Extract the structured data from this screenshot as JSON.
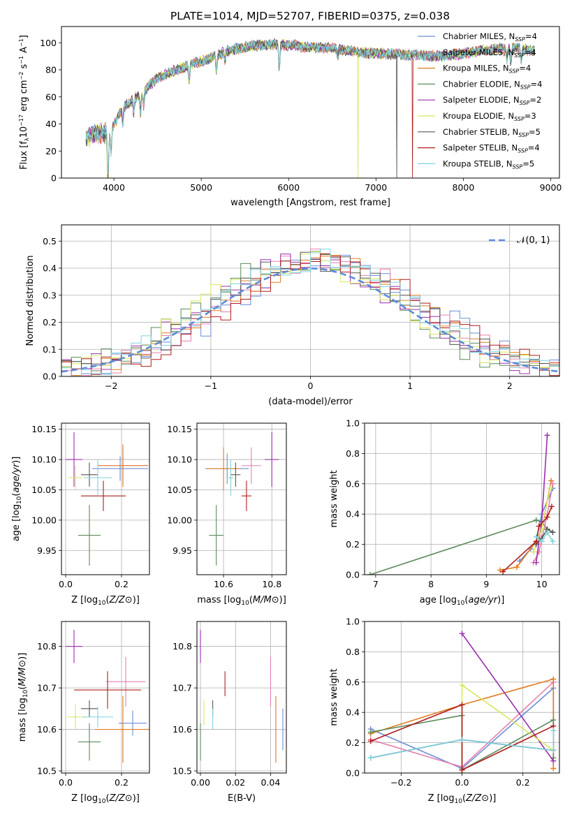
{
  "figure_title": "PLATE=1014, MJD=52707, FIBERID=0375, z=0.038",
  "colors": [
    "#6b8ed6",
    "#e67fb0",
    "#e07b1f",
    "#5b8b5b",
    "#9b2fae",
    "#d7e85a",
    "#555555",
    "#b01c1c",
    "#7fd3df"
  ],
  "chart_data": [
    {
      "id": "spectrum",
      "type": "line",
      "xlabel": "wavelength [Angstrom, rest frame]",
      "ylabel_parts": [
        "Flux [f",
        "λ",
        "10",
        "−17",
        " erg cm",
        "−2",
        " s",
        "−1",
        " A",
        "−1",
        "]"
      ],
      "xlim": [
        3400,
        9100
      ],
      "ylim": [
        0,
        112
      ],
      "xticks": [
        4000,
        5000,
        6000,
        7000,
        8000,
        9000
      ],
      "yticks": [
        0,
        20,
        40,
        60,
        80,
        100
      ],
      "grid": false,
      "legend_position": "top-right",
      "continuum": {
        "x": [
          3680,
          3850,
          3950,
          4100,
          4300,
          4500,
          4800,
          5000,
          5300,
          5600,
          5900,
          6200,
          6500,
          6800,
          7100,
          7400,
          7700,
          8000,
          8300,
          8600,
          8820
        ],
        "y": [
          30,
          34,
          33,
          52,
          62,
          74,
          82,
          86,
          94,
          98,
          99,
          97,
          96,
          93,
          92,
          91,
          90,
          92,
          95,
          96,
          94
        ]
      },
      "dips": [
        {
          "x": 3933,
          "depth": 34
        },
        {
          "x": 3968,
          "depth": 18
        },
        {
          "x": 4102,
          "depth": 12
        },
        {
          "x": 4227,
          "depth": 10
        },
        {
          "x": 4305,
          "depth": 14
        },
        {
          "x": 4340,
          "depth": 10
        },
        {
          "x": 4861,
          "depth": 12
        },
        {
          "x": 5175,
          "depth": 12
        },
        {
          "x": 5270,
          "depth": 6
        },
        {
          "x": 5893,
          "depth": 20
        },
        {
          "x": 6563,
          "depth": 6
        },
        {
          "x": 8500,
          "depth": 8
        },
        {
          "x": 8544,
          "depth": 10
        },
        {
          "x": 8664,
          "depth": 10
        }
      ],
      "drops": [
        {
          "x": 3925,
          "series": 5
        },
        {
          "x": 6795,
          "series": 5
        },
        {
          "x": 7240,
          "series": 6
        },
        {
          "x": 7420,
          "series": 7
        }
      ],
      "series": [
        {
          "label_main": "Chabrier MILES, N",
          "label_sub": "SSP",
          "label_tail": "=4",
          "color_index": 0
        },
        {
          "label_main": "Salpeter MILES, N",
          "label_sub": "SSP",
          "label_tail": "=4",
          "color_index": 1
        },
        {
          "label_main": "Kroupa MILES, N",
          "label_sub": "SSP",
          "label_tail": "=4",
          "color_index": 2
        },
        {
          "label_main": "Chabrier ELODIE, N",
          "label_sub": "SSP",
          "label_tail": "=4",
          "color_index": 3
        },
        {
          "label_main": "Salpeter ELODIE, N",
          "label_sub": "SSP",
          "label_tail": "=2",
          "color_index": 4
        },
        {
          "label_main": "Kroupa ELODIE, N",
          "label_sub": "SSP",
          "label_tail": "=3",
          "color_index": 5
        },
        {
          "label_main": "Chabrier STELIB, N",
          "label_sub": "SSP",
          "label_tail": "=5",
          "color_index": 6
        },
        {
          "label_main": "Salpeter STELIB, N",
          "label_sub": "SSP",
          "label_tail": "=4",
          "color_index": 7
        },
        {
          "label_main": "Kroupa STELIB, N",
          "label_sub": "SSP",
          "label_tail": "=5",
          "color_index": 8
        }
      ]
    },
    {
      "id": "residuals",
      "type": "line",
      "xlabel": "(data-model)/error",
      "ylabel": "Normed distribution",
      "xlim": [
        -2.5,
        2.5
      ],
      "ylim": [
        0,
        0.56
      ],
      "xticks": [
        -2,
        -1,
        0,
        1,
        2
      ],
      "yticks": [
        0.0,
        0.1,
        0.2,
        0.3,
        0.4,
        0.5
      ],
      "xtick_labels": [
        "−2",
        "−1",
        "0",
        "1",
        "2"
      ],
      "ytick_labels": [
        "0.0",
        "0.1",
        "0.2",
        "0.3",
        "0.4",
        "0.5"
      ],
      "grid": true,
      "legend_position": "top-right",
      "gaussian_label": "𝒩(0, 1)",
      "gaussian_color": "#5b8bd9",
      "bin_edges_start": -2.5,
      "bin_width": 0.1,
      "bin_count": 50,
      "series": [
        {
          "color_index": 0,
          "shift": 0.22,
          "seed": 3
        },
        {
          "color_index": 1,
          "shift": 0.12,
          "seed": 7
        },
        {
          "color_index": 2,
          "shift": 0.1,
          "seed": 11
        },
        {
          "color_index": 3,
          "shift": -0.12,
          "seed": 13
        },
        {
          "color_index": 4,
          "shift": -0.05,
          "seed": 17
        },
        {
          "color_index": 5,
          "shift": -0.08,
          "seed": 19
        },
        {
          "color_index": 6,
          "shift": 0.05,
          "seed": 23
        },
        {
          "color_index": 7,
          "shift": 0.18,
          "seed": 29
        },
        {
          "color_index": 8,
          "shift": 0.02,
          "seed": 31
        }
      ]
    },
    {
      "id": "age-vs-Z",
      "type": "scatter",
      "xlabel": "Z [log10(Z/Z⊙)]",
      "ylabel": "age  [log10(age/yr)]",
      "xlim": [
        -0.015,
        0.3
      ],
      "ylim": [
        9.91,
        10.16
      ],
      "xticks": [
        0.0,
        0.2
      ],
      "xtick_labels": [
        "0.0",
        "0.2"
      ],
      "yticks": [
        9.95,
        10.0,
        10.05,
        10.1,
        10.15
      ],
      "ytick_labels": [
        "9.95",
        "10.00",
        "10.05",
        "10.10",
        "10.15"
      ],
      "grid": true,
      "points": [
        {
          "c": 0,
          "x": 0.195,
          "y": 10.085,
          "xerr": 0.1,
          "yerr": 0.02
        },
        {
          "c": 1,
          "x": 0.205,
          "y": 10.09,
          "xerr": 0.09,
          "yerr": 0.03
        },
        {
          "c": 2,
          "x": 0.205,
          "y": 10.09,
          "xerr": 0.09,
          "yerr": 0.035
        },
        {
          "c": 3,
          "x": 0.085,
          "y": 9.975,
          "xerr": 0.04,
          "yerr": 0.05
        },
        {
          "c": 4,
          "x": 0.03,
          "y": 10.1,
          "xerr": 0.03,
          "yerr": 0.045
        },
        {
          "c": 5,
          "x": 0.035,
          "y": 10.07,
          "xerr": 0.025,
          "yerr": 0.02
        },
        {
          "c": 6,
          "x": 0.085,
          "y": 10.075,
          "xerr": 0.03,
          "yerr": 0.02
        },
        {
          "c": 7,
          "x": 0.135,
          "y": 10.04,
          "xerr": 0.08,
          "yerr": 0.025
        },
        {
          "c": 8,
          "x": 0.115,
          "y": 10.07,
          "xerr": 0.05,
          "yerr": 0.03
        }
      ]
    },
    {
      "id": "age-vs-mass",
      "type": "scatter",
      "xlabel": "mass [log10(M/M⊙)]",
      "ylabel": "",
      "xlim": [
        10.49,
        10.86
      ],
      "ylim": [
        9.91,
        10.16
      ],
      "xticks": [
        10.6,
        10.8
      ],
      "xtick_labels": [
        "10.6",
        "10.8"
      ],
      "yticks": [
        9.95,
        10.0,
        10.05,
        10.1,
        10.15
      ],
      "ytick_labels": [
        "9.95",
        "10.00",
        "10.05",
        "10.10",
        "10.15"
      ],
      "grid": true,
      "points": [
        {
          "c": 0,
          "x": 10.615,
          "y": 10.085,
          "xerr": 0.09,
          "yerr": 0.025
        },
        {
          "c": 1,
          "x": 10.715,
          "y": 10.09,
          "xerr": 0.04,
          "yerr": 0.03
        },
        {
          "c": 2,
          "x": 10.6,
          "y": 10.085,
          "xerr": 0.07,
          "yerr": 0.035
        },
        {
          "c": 3,
          "x": 10.57,
          "y": 9.975,
          "xerr": 0.03,
          "yerr": 0.05
        },
        {
          "c": 4,
          "x": 10.8,
          "y": 10.1,
          "xerr": 0.03,
          "yerr": 0.045
        },
        {
          "c": 5,
          "x": 10.63,
          "y": 10.07,
          "xerr": 0.01,
          "yerr": 0.02
        },
        {
          "c": 6,
          "x": 10.65,
          "y": 10.075,
          "xerr": 0.02,
          "yerr": 0.02
        },
        {
          "c": 7,
          "x": 10.695,
          "y": 10.04,
          "xerr": 0.02,
          "yerr": 0.025
        },
        {
          "c": 8,
          "x": 10.63,
          "y": 10.07,
          "xerr": 0.01,
          "yerr": 0.03
        }
      ]
    },
    {
      "id": "weight-vs-age",
      "type": "line",
      "xlabel": "age  [log10(age/yr)]",
      "ylabel": "mass weight",
      "xlim": [
        6.8,
        10.32
      ],
      "ylim": [
        0,
        1.0
      ],
      "xticks": [
        7,
        8,
        9,
        10
      ],
      "xtick_labels": [
        "7",
        "8",
        "9",
        "10"
      ],
      "yticks": [
        0.0,
        0.2,
        0.4,
        0.6,
        0.8,
        1.0
      ],
      "ytick_labels": [
        "0.0",
        "0.2",
        "0.4",
        "0.6",
        "0.8",
        "1.0"
      ],
      "grid": true,
      "series": [
        {
          "c": 3,
          "x": [
            6.9,
            9.9,
            10.0,
            10.1
          ],
          "y": [
            0.0,
            0.36,
            0.35,
            0.3
          ]
        },
        {
          "c": 0,
          "x": [
            9.6,
            9.8,
            9.9,
            10.0,
            10.2
          ],
          "y": [
            0.09,
            0.17,
            0.22,
            0.4,
            0.57
          ]
        },
        {
          "c": 2,
          "x": [
            9.25,
            9.55,
            9.9,
            10.0,
            10.17
          ],
          "y": [
            0.03,
            0.05,
            0.22,
            0.3,
            0.62
          ]
        },
        {
          "c": 1,
          "x": [
            9.85,
            9.95,
            10.1,
            10.2
          ],
          "y": [
            0.08,
            0.15,
            0.4,
            0.6
          ]
        },
        {
          "c": 4,
          "x": [
            9.9,
            10.0,
            10.1
          ],
          "y": [
            0.08,
            0.35,
            0.92
          ]
        },
        {
          "c": 5,
          "x": [
            9.85,
            10.0,
            10.15
          ],
          "y": [
            0.15,
            0.3,
            0.57
          ]
        },
        {
          "c": 6,
          "x": [
            9.9,
            10.0,
            10.1,
            10.2
          ],
          "y": [
            0.2,
            0.24,
            0.3,
            0.28
          ]
        },
        {
          "c": 7,
          "x": [
            9.3,
            9.9,
            9.95,
            10.1,
            10.18
          ],
          "y": [
            0.02,
            0.22,
            0.32,
            0.38,
            0.45
          ]
        },
        {
          "c": 8,
          "x": [
            9.9,
            10.0,
            10.1,
            10.2
          ],
          "y": [
            0.25,
            0.22,
            0.28,
            0.22
          ]
        }
      ]
    },
    {
      "id": "mass-vs-Z",
      "type": "scatter",
      "xlabel": "Z [log10(Z/Z⊙)]",
      "ylabel": "mass [log10(M/M⊙)]",
      "xlim": [
        -0.015,
        0.3
      ],
      "ylim": [
        10.495,
        10.86
      ],
      "xticks": [
        0.0,
        0.2
      ],
      "xtick_labels": [
        "0.0",
        "0.2"
      ],
      "yticks": [
        10.5,
        10.6,
        10.7,
        10.8
      ],
      "ytick_labels": [
        "10.5",
        "10.6",
        "10.7",
        "10.8"
      ],
      "grid": true,
      "points": [
        {
          "c": 0,
          "x": 0.24,
          "y": 10.615,
          "xerr": 0.05,
          "yerr": 0.03
        },
        {
          "c": 1,
          "x": 0.215,
          "y": 10.715,
          "xerr": 0.07,
          "yerr": 0.06
        },
        {
          "c": 2,
          "x": 0.205,
          "y": 10.6,
          "xerr": 0.1,
          "yerr": 0.08
        },
        {
          "c": 3,
          "x": 0.085,
          "y": 10.57,
          "xerr": 0.04,
          "yerr": 0.045
        },
        {
          "c": 4,
          "x": 0.03,
          "y": 10.8,
          "xerr": 0.03,
          "yerr": 0.04
        },
        {
          "c": 5,
          "x": 0.035,
          "y": 10.63,
          "xerr": 0.03,
          "yerr": 0.03
        },
        {
          "c": 6,
          "x": 0.085,
          "y": 10.65,
          "xerr": 0.03,
          "yerr": 0.02
        },
        {
          "c": 7,
          "x": 0.15,
          "y": 10.695,
          "xerr": 0.12,
          "yerr": 0.045
        },
        {
          "c": 8,
          "x": 0.115,
          "y": 10.63,
          "xerr": 0.055,
          "yerr": 0.025
        }
      ]
    },
    {
      "id": "mass-vs-EBV",
      "type": "scatter",
      "xlabel": "E(B-V)",
      "ylabel": "",
      "xlim": [
        -0.002,
        0.049
      ],
      "ylim": [
        10.495,
        10.86
      ],
      "xticks": [
        0.0,
        0.02,
        0.04
      ],
      "xtick_labels": [
        "0.00",
        "0.02",
        "0.04"
      ],
      "yticks": [
        10.5,
        10.6,
        10.7,
        10.8
      ],
      "ytick_labels": [
        "10.5",
        "10.6",
        "10.7",
        "10.8"
      ],
      "grid": true,
      "points": [
        {
          "c": 0,
          "x": 0.047,
          "y": 10.6,
          "xerr": 0.0,
          "yerr": 0.05
        },
        {
          "c": 1,
          "x": 0.04,
          "y": 10.715,
          "xerr": 0.0,
          "yerr": 0.06
        },
        {
          "c": 2,
          "x": 0.043,
          "y": 10.6,
          "xerr": 0.0,
          "yerr": 0.08
        },
        {
          "c": 3,
          "x": 0.0,
          "y": 10.57,
          "xerr": 0.0,
          "yerr": 0.045
        },
        {
          "c": 4,
          "x": 0.0,
          "y": 10.8,
          "xerr": 0.0,
          "yerr": 0.04
        },
        {
          "c": 5,
          "x": 0.002,
          "y": 10.64,
          "xerr": 0.0,
          "yerr": 0.03
        },
        {
          "c": 6,
          "x": 0.007,
          "y": 10.65,
          "xerr": 0.0,
          "yerr": 0.02
        },
        {
          "c": 7,
          "x": 0.014,
          "y": 10.71,
          "xerr": 0.0,
          "yerr": 0.03
        },
        {
          "c": 8,
          "x": 0.007,
          "y": 10.625,
          "xerr": 0.0,
          "yerr": 0.025
        }
      ]
    },
    {
      "id": "weight-vs-Z",
      "type": "line",
      "xlabel": "Z [log10(Z/Z⊙)]",
      "ylabel": "mass weight",
      "xlim": [
        -0.32,
        0.32
      ],
      "ylim": [
        0,
        1.0
      ],
      "xticks": [
        -0.2,
        0.0,
        0.2
      ],
      "xtick_labels": [
        "−0.2",
        "0.0",
        "0.2"
      ],
      "yticks": [
        0.0,
        0.2,
        0.4,
        0.6,
        0.8,
        1.0
      ],
      "ytick_labels": [
        "0.0",
        "0.2",
        "0.4",
        "0.6",
        "0.8",
        "1.0"
      ],
      "grid": true,
      "series": [
        {
          "c": 0,
          "x": [
            -0.3,
            0.0,
            0.3,
            0.3,
            0.0,
            -0.3
          ],
          "y": [
            0.29,
            0.03,
            0.56,
            0.15,
            0.22,
            0.1
          ]
        },
        {
          "c": 1,
          "x": [
            -0.3,
            0.0,
            0.3,
            0.3
          ],
          "y": [
            0.22,
            0.04,
            0.6,
            0.08
          ]
        },
        {
          "c": 2,
          "x": [
            -0.3,
            0.0,
            0.3,
            0.3
          ],
          "y": [
            0.26,
            0.45,
            0.62,
            0.03
          ]
        },
        {
          "c": 3,
          "x": [
            -0.3,
            0.0,
            0.0,
            0.3,
            0.3
          ],
          "y": [
            0.27,
            0.38,
            0.02,
            0.35,
            0.1
          ]
        },
        {
          "c": 4,
          "x": [
            0.0,
            0.3
          ],
          "y": [
            0.92,
            0.08
          ]
        },
        {
          "c": 5,
          "x": [
            0.0,
            0.0,
            0.3
          ],
          "y": [
            0.0,
            0.58,
            0.15
          ]
        },
        {
          "c": 6,
          "x": [
            -0.3,
            0.0,
            0.3
          ],
          "y": [
            0.1,
            0.22,
            0.15
          ]
        },
        {
          "c": 7,
          "x": [
            -0.3,
            0.0,
            0.0,
            0.3
          ],
          "y": [
            0.21,
            0.45,
            0.02,
            0.31
          ]
        },
        {
          "c": 8,
          "x": [
            -0.3,
            0.0,
            0.3,
            0.3
          ],
          "y": [
            0.1,
            0.22,
            0.15,
            0.28
          ]
        }
      ]
    }
  ]
}
